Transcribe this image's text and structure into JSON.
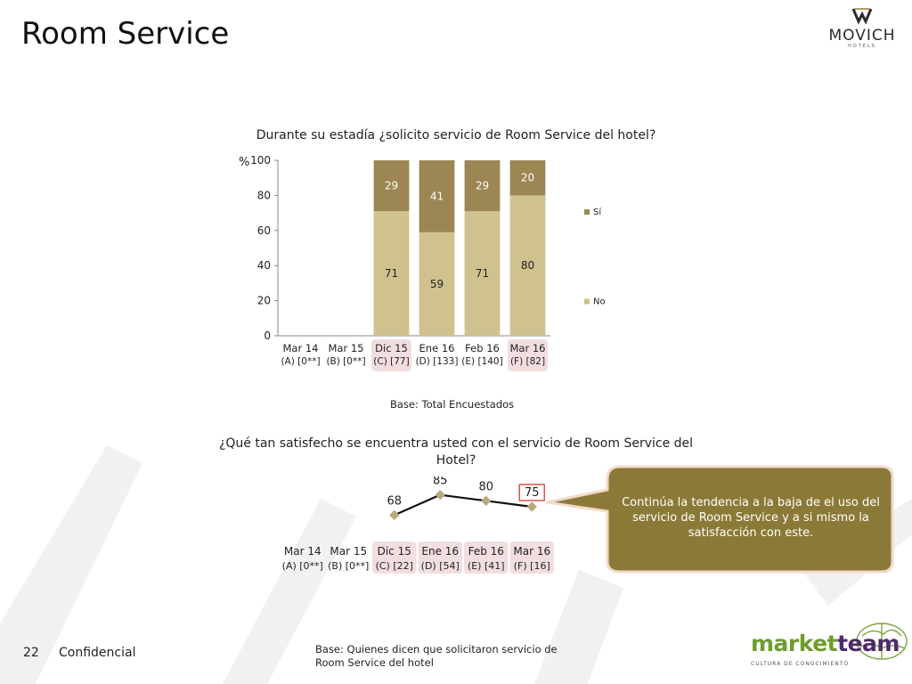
{
  "slide": {
    "title": "Room Service",
    "logo_name": "MOVICH",
    "logo_sub": "HOTELS",
    "page_number": "22",
    "confidential": "Confidencial",
    "footer_base": "Base: Quienes dicen que solicitaron servicio de Room Service del hotel",
    "callout": "Continúa la tendencia a la baja de el uso del servicio de Room Service y a si mismo la satisfacción con este.",
    "brand_market": "market",
    "brand_team": "team",
    "brand_sub": "CULTURA DE CONOCIMIENTO",
    "colors": {
      "si": "#9b8654",
      "no": "#cfc28f",
      "highlight": "#f2dede",
      "callout": "#8b7a37",
      "callout_border": "#f3d9c9",
      "line": "#111111",
      "marker": "#b8ab7a",
      "box": "#d9534f"
    }
  },
  "chart_data": [
    {
      "type": "bar",
      "stacked": true,
      "title": "Durante su estadía ¿solicito servicio de Room Service del hotel?",
      "ylabel": "%",
      "ylim": [
        0,
        100
      ],
      "yticks": [
        0,
        20,
        40,
        60,
        80,
        100
      ],
      "categories": [
        "Mar 14",
        "Mar 15",
        "Dic 15",
        "Ene 16",
        "Feb 16",
        "Mar 16"
      ],
      "category_bases": [
        "(A) [0**]",
        "(B) [0**]",
        "(C) [77]",
        "(D) [133]",
        "(E) [140]",
        "(F) [82]"
      ],
      "highlighted": [
        false,
        false,
        true,
        false,
        false,
        true
      ],
      "series": [
        {
          "name": "No",
          "values": [
            null,
            null,
            71,
            59,
            71,
            80
          ]
        },
        {
          "name": "Sí",
          "values": [
            null,
            null,
            29,
            41,
            29,
            20
          ]
        }
      ],
      "legend": "right",
      "base_note": "Base: Total Encuestados"
    },
    {
      "type": "line",
      "title": "¿Qué tan satisfecho se encuentra usted con el servicio de Room Service del Hotel?",
      "categories": [
        "Mar 14",
        "Mar 15",
        "Dic 15",
        "Ene 16",
        "Feb 16",
        "Mar 16"
      ],
      "category_bases": [
        "(A) [0**]",
        "(B) [0**]",
        "(C) [22]",
        "(D) [54]",
        "(E) [41]",
        "(F) [16]"
      ],
      "highlighted": [
        false,
        false,
        true,
        true,
        true,
        true
      ],
      "values": [
        null,
        null,
        68,
        85,
        80,
        75
      ],
      "boxed_value_index": 5
    }
  ]
}
